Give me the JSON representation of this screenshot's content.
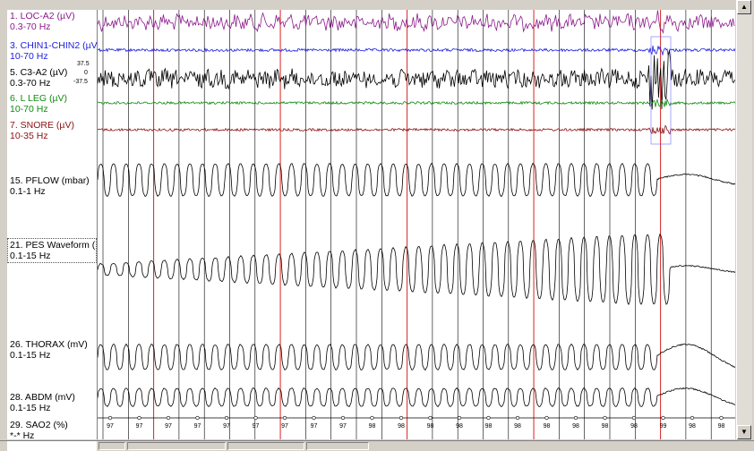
{
  "channels": [
    {
      "label": "1. LOC-A2 (µV)",
      "filter": "0.3-70 Hz",
      "color": "#8b1a8b",
      "type": "eog"
    },
    {
      "label": "3. CHIN1-CHIN2 (µV",
      "filter": "10-70 Hz",
      "color": "#1c1ce0",
      "type": "emg"
    },
    {
      "label": "5. C3-A2 (µV)",
      "filter": "0.3-70 Hz",
      "color": "#000000",
      "type": "eeg"
    },
    {
      "label": "6. L LEG (µV)",
      "filter": "10-70 Hz",
      "color": "#108a10",
      "type": "leg"
    },
    {
      "label": "7. SNORE (µV)",
      "filter": "10-35 Hz",
      "color": "#8b1010",
      "type": "snore"
    },
    {
      "label": "15. PFLOW (mbar)",
      "filter": "0.1-1 Hz",
      "color": "#000000",
      "type": "flow"
    },
    {
      "label": "21. PES Waveform (",
      "filter": "0.1-15 Hz",
      "color": "#000000",
      "type": "pes"
    },
    {
      "label": "26. THORAX (mV)",
      "filter": "0.1-15 Hz",
      "color": "#000000",
      "type": "thorax"
    },
    {
      "label": "28. ABDM (mV)",
      "filter": "0.1-15 Hz",
      "color": "#000000",
      "type": "abdm"
    },
    {
      "label": "29. SAO2 (%)",
      "filter": "*-* Hz",
      "color": "#000000",
      "type": "sao2"
    }
  ],
  "eeg_scale": {
    "top": "37.5",
    "mid": "0",
    "bottom": "-37.5"
  },
  "sao2_values": [
    "97",
    "97",
    "97",
    "97",
    "97",
    "97",
    "97",
    "97",
    "97",
    "98",
    "98",
    "98",
    "98",
    "98",
    "98",
    "98",
    "98",
    "98",
    "98",
    "99",
    "98",
    "98"
  ],
  "colors": {
    "grid_red": "#e03030",
    "grid_black": "#000000"
  }
}
